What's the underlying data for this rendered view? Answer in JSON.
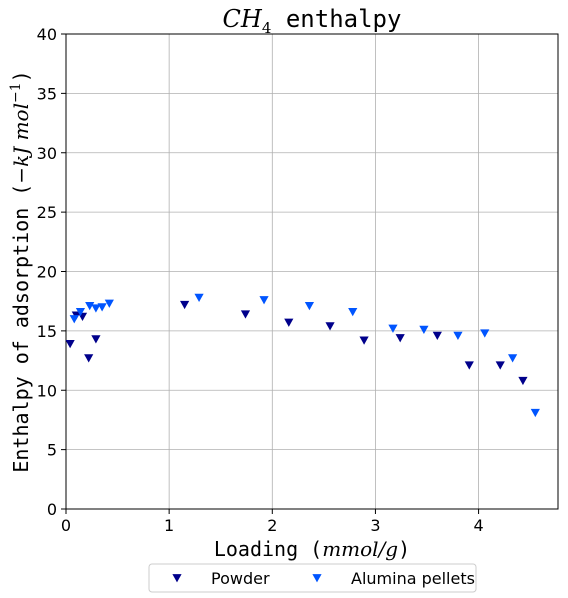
{
  "chart_data": {
    "type": "scatter",
    "title": "CH4 enthalpy",
    "xlabel": "Loading (mmol/g)",
    "ylabel": "Enthalpy of adsorption (−kJ mol−1)",
    "xlim": [
      0,
      4.77
    ],
    "ylim": [
      0,
      40
    ],
    "xticks": [
      0,
      1,
      2,
      3,
      4
    ],
    "yticks": [
      0,
      5,
      10,
      15,
      20,
      25,
      30,
      35,
      40
    ],
    "grid": true,
    "legend_position": "bottom-center-outside",
    "marker": "triangle-down",
    "series": [
      {
        "name": "Powder",
        "color": "#00008b",
        "x": [
          0.04,
          0.1,
          0.16,
          0.22,
          0.29,
          1.15,
          1.74,
          2.16,
          2.56,
          2.89,
          3.24,
          3.6,
          3.91,
          4.21,
          4.43
        ],
        "y": [
          13.9,
          16.3,
          16.2,
          12.7,
          14.3,
          17.2,
          16.4,
          15.7,
          15.4,
          14.2,
          14.4,
          14.6,
          12.1,
          12.1,
          10.8
        ]
      },
      {
        "name": "Alumina pellets",
        "color": "#0055ff",
        "x": [
          0.08,
          0.14,
          0.23,
          0.29,
          0.35,
          0.42,
          1.29,
          1.92,
          2.36,
          2.78,
          3.17,
          3.47,
          3.8,
          4.06,
          4.33,
          4.55
        ],
        "y": [
          16.0,
          16.6,
          17.1,
          16.9,
          17.0,
          17.3,
          17.8,
          17.6,
          17.1,
          16.6,
          15.2,
          15.1,
          14.6,
          14.8,
          12.7,
          8.1
        ]
      }
    ]
  }
}
